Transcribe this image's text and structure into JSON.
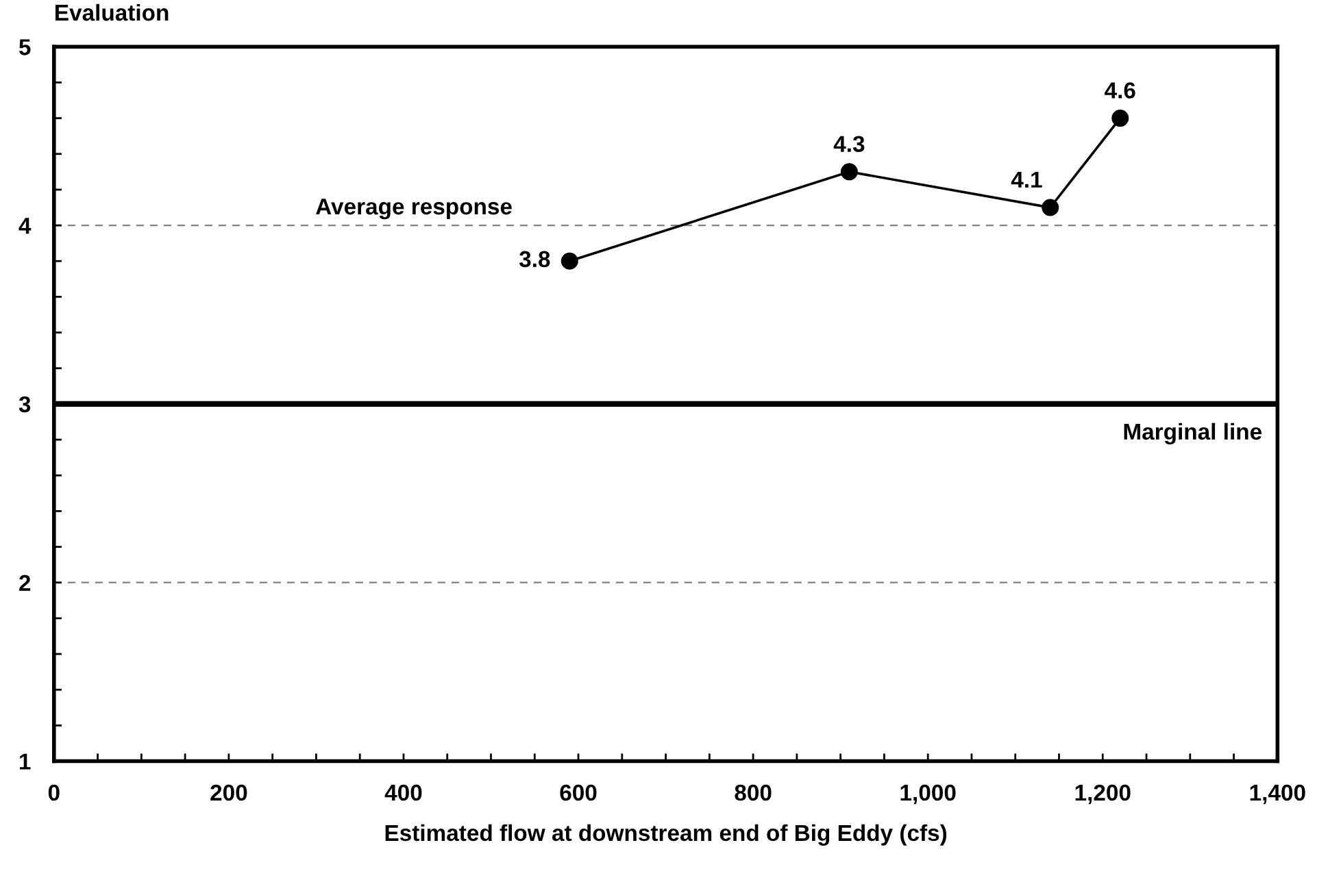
{
  "chart_data": {
    "type": "line",
    "xlabel": "Estimated flow at downstream end of Big Eddy (cfs)",
    "ylabel": "Evaluation",
    "x": [
      590,
      910,
      1140,
      1220
    ],
    "series": [
      {
        "name": "Average response",
        "color": "#000000",
        "values": [
          3.8,
          4.3,
          4.1,
          4.6
        ]
      }
    ],
    "data_labels": true,
    "marker": "circle",
    "line_style": "solid",
    "grid": "y",
    "xlim": [
      0,
      1400
    ],
    "ylim": [
      1,
      5
    ],
    "xticks": [
      0,
      {
        "value": 50,
        "label": null
      },
      {
        "value": 100,
        "label": null
      },
      {
        "value": 150,
        "label": null
      },
      {
        "value": 200,
        "label": "200"
      },
      {
        "value": 250,
        "label": null
      },
      {
        "value": 300,
        "label": null
      },
      {
        "value": 350,
        "label": null
      },
      {
        "value": 400,
        "label": "400"
      },
      {
        "value": 450,
        "label": null
      },
      {
        "value": 500,
        "label": null
      },
      {
        "value": 550,
        "label": null
      },
      {
        "value": 600,
        "label": "600"
      },
      {
        "value": 650,
        "label": null
      },
      {
        "value": 700,
        "label": null
      },
      {
        "value": 750,
        "label": null
      },
      {
        "value": 800,
        "label": "800"
      },
      {
        "value": 850,
        "label": null
      },
      {
        "value": 900,
        "label": null
      },
      {
        "value": 950,
        "label": null
      },
      {
        "value": 1000,
        "label": "1,000"
      },
      {
        "value": 1050,
        "label": null
      },
      {
        "value": 1100,
        "label": null
      },
      {
        "value": 1150,
        "label": null
      },
      {
        "value": 1200,
        "label": "1,200"
      },
      {
        "value": 1250,
        "label": null
      },
      {
        "value": 1300,
        "label": null
      },
      {
        "value": 1350,
        "label": null
      },
      {
        "value": 1400,
        "label": "1,400"
      }
    ],
    "yticks": [
      1,
      {
        "value": 1.2,
        "label": null
      },
      {
        "value": 1.4,
        "label": null
      },
      {
        "value": 1.6,
        "label": null
      },
      {
        "value": 1.8,
        "label": null
      },
      2,
      {
        "value": 2.2,
        "label": null
      },
      {
        "value": 2.4,
        "label": null
      },
      {
        "value": 2.6,
        "label": null
      },
      {
        "value": 2.8,
        "label": null
      },
      3,
      {
        "value": 3.2,
        "label": null
      },
      {
        "value": 3.4,
        "label": null
      },
      {
        "value": 3.6,
        "label": null
      },
      {
        "value": 3.8,
        "label": null
      },
      4,
      {
        "value": 4.2,
        "label": null
      },
      {
        "value": 4.4,
        "label": null
      },
      {
        "value": 4.6,
        "label": null
      },
      {
        "value": 4.8,
        "label": null
      },
      5
    ],
    "ref_lines": [
      {
        "axis": "y",
        "value": 3,
        "label": "Marginal line",
        "color": "#000000",
        "line_style": "solid"
      }
    ]
  }
}
